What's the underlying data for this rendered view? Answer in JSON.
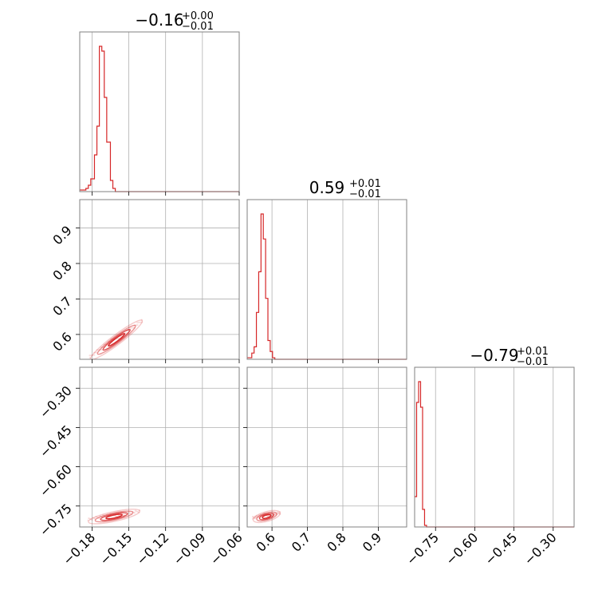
{
  "chart_data": {
    "type": "corner",
    "color": "#d62728",
    "parameters": [
      {
        "title": "−0.16",
        "title_upper": "+0.00",
        "title_lower": "−0.01",
        "range": [
          -0.19,
          -0.06
        ],
        "ticks": [
          -0.18,
          -0.15,
          -0.12,
          -0.09,
          -0.06
        ],
        "tick_labels": [
          "−0.18",
          "−0.15",
          "−0.12",
          "−0.09",
          "−0.06"
        ]
      },
      {
        "title": "0.59",
        "title_upper": "+0.01",
        "title_lower": "−0.01",
        "range": [
          0.53,
          0.98
        ],
        "ticks": [
          0.6,
          0.7,
          0.8,
          0.9
        ],
        "tick_labels": [
          "0.6",
          "0.7",
          "0.8",
          "0.9"
        ]
      },
      {
        "title": "−0.79",
        "title_upper": "+0.01",
        "title_lower": "−0.01",
        "range": [
          -0.83,
          -0.22
        ],
        "ticks": [
          -0.75,
          -0.6,
          -0.45,
          -0.3
        ],
        "tick_labels": [
          "−0.75",
          "−0.60",
          "−0.45",
          "−0.30"
        ]
      }
    ],
    "histograms": [
      {
        "param": 0,
        "bins": [
          -0.19,
          -0.187,
          -0.185,
          -0.183,
          -0.181,
          -0.178,
          -0.176,
          -0.174,
          -0.172,
          -0.17,
          -0.168,
          -0.165,
          -0.163,
          -0.161,
          -0.159,
          -0.157
        ],
        "counts": [
          0.01,
          0.01,
          0.02,
          0.04,
          0.08,
          0.23,
          0.41,
          0.91,
          0.88,
          0.59,
          0.31,
          0.07,
          0.02,
          0,
          0
        ]
      },
      {
        "param": 1,
        "bins": [
          0.53,
          0.5365,
          0.543,
          0.5495,
          0.556,
          0.5625,
          0.569,
          0.5755,
          0.582,
          0.5885,
          0.595,
          0.6015,
          0.608,
          0.6145,
          0.621,
          0.6275,
          0.634
        ],
        "counts": [
          0.01,
          0.01,
          0.04,
          0.08,
          0.3,
          0.56,
          0.93,
          0.77,
          0.39,
          0.12,
          0.05,
          0.01,
          0,
          0,
          0,
          0
        ]
      },
      {
        "param": 2,
        "bins": [
          -0.83,
          -0.8224,
          -0.8148,
          -0.8072,
          -0.7996,
          -0.792,
          -0.7844,
          -0.7768,
          -0.7692
        ],
        "counts": [
          0.19,
          0.78,
          0.91,
          0.75,
          0.11,
          0.01,
          0,
          0
        ]
      }
    ],
    "pairs": [
      {
        "x_param": 0,
        "y_param": 1,
        "center": [
          -0.16,
          0.585
        ],
        "slope": 2.6,
        "spread": [
          0.011,
          0.004
        ]
      },
      {
        "x_param": 0,
        "y_param": 2,
        "center": [
          -0.162,
          -0.79
        ],
        "slope": 1.0,
        "spread": [
          0.011,
          0.003
        ]
      },
      {
        "x_param": 1,
        "y_param": 2,
        "center": [
          0.585,
          -0.79
        ],
        "slope": 0.38,
        "spread": [
          0.02,
          0.003
        ]
      }
    ]
  }
}
